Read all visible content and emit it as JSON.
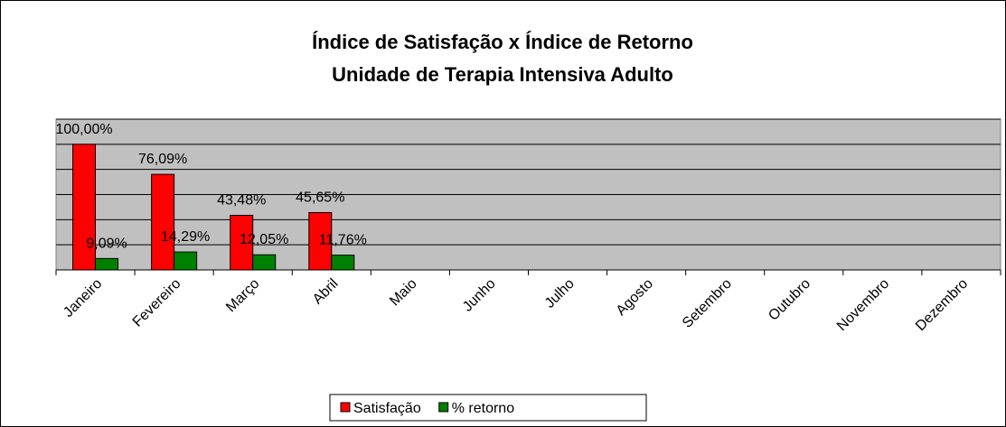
{
  "chart_data": {
    "type": "bar",
    "title": "Índice de Satisfação x Índice de Retorno",
    "subtitle": "Unidade de Terapia Intensiva Adulto",
    "categories": [
      "Janeiro",
      "Fevereiro",
      "Março",
      "Abril",
      "Maio",
      "Junho",
      "Julho",
      "Agosto",
      "Setembro",
      "Outubro",
      "Novembro",
      "Dezembro"
    ],
    "series": [
      {
        "name": "Satisfação",
        "color": "#ff0000",
        "values": [
          100,
          76.09,
          43.48,
          45.65,
          null,
          null,
          null,
          null,
          null,
          null,
          null,
          null
        ],
        "value_labels": [
          "100,00%",
          "76,09%",
          "43,48%",
          "45,65%",
          null,
          null,
          null,
          null,
          null,
          null,
          null,
          null
        ]
      },
      {
        "name": "% retorno",
        "color": "#008000",
        "values": [
          9.09,
          14.29,
          12.05,
          11.76,
          null,
          null,
          null,
          null,
          null,
          null,
          null,
          null
        ],
        "value_labels": [
          "9,09%",
          "14,29%",
          "12,05%",
          "11,76%",
          null,
          null,
          null,
          null,
          null,
          null,
          null,
          null
        ]
      }
    ],
    "ylim": [
      0,
      120
    ],
    "yticks": [
      0,
      20,
      40,
      60,
      80,
      100,
      120
    ],
    "grid": true,
    "legend": "bottom"
  }
}
